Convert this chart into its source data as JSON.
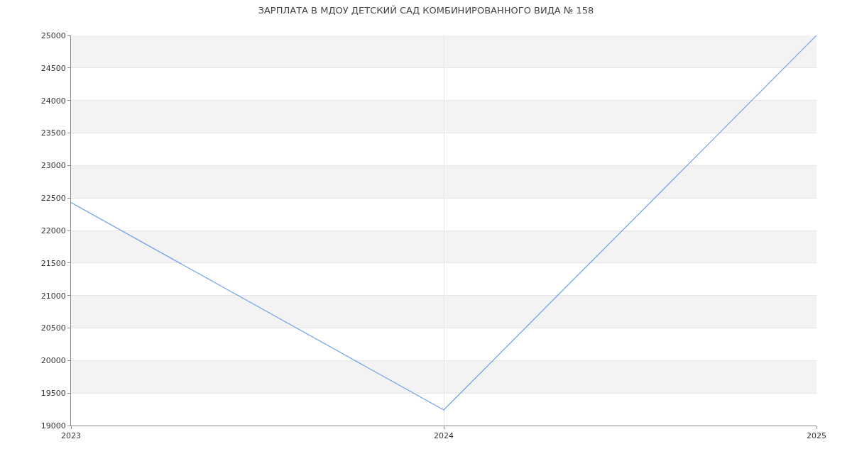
{
  "chart_data": {
    "type": "line",
    "title": "ЗАРПЛАТА В МДОУ ДЕТСКИЙ САД КОМБИНИРОВАННОГО ВИДА № 158",
    "x": [
      2023,
      2024,
      2025
    ],
    "series": [
      {
        "color": "#6d9eeb",
        "values": [
          22430,
          19240,
          25000
        ]
      }
    ],
    "xlim": [
      2023,
      2025
    ],
    "xticks": [
      2023,
      2024,
      2025
    ],
    "ylim": [
      19000,
      25000
    ],
    "yticks": [
      19000,
      19500,
      20000,
      20500,
      21000,
      21500,
      22000,
      22500,
      23000,
      23500,
      24000,
      24500,
      25000
    ],
    "grid": true,
    "marker": "none",
    "line_style": "solid"
  }
}
